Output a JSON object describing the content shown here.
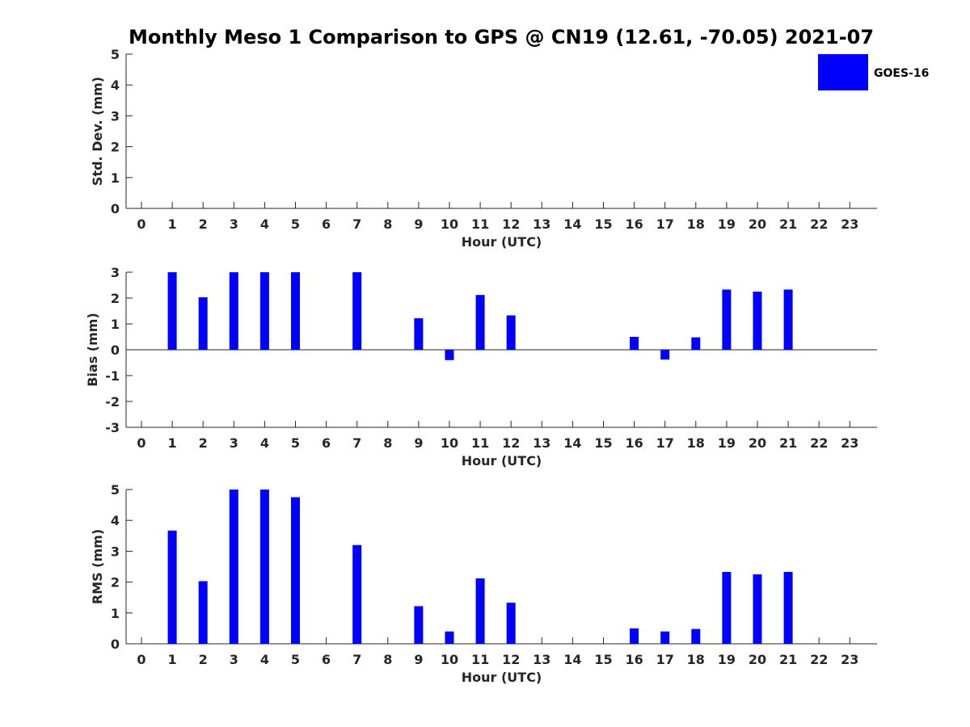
{
  "chart_data": {
    "type": "bar",
    "title": "Monthly Meso 1 Comparison to GPS @ CN19 (12.61, -70.05) 2021-07",
    "legend": {
      "label": "GOES-16",
      "color": "#0000ff",
      "position": "top-right"
    },
    "categories": [
      "0",
      "1",
      "2",
      "3",
      "4",
      "5",
      "6",
      "7",
      "8",
      "9",
      "10",
      "11",
      "12",
      "13",
      "14",
      "15",
      "16",
      "17",
      "18",
      "19",
      "20",
      "21",
      "22",
      "23"
    ],
    "panels": [
      {
        "id": "std",
        "ylabel": "Std. Dev. (mm)",
        "xlabel": "Hour (UTC)",
        "ylim": [
          0,
          5
        ],
        "yticks": [
          "0",
          "1",
          "2",
          "3",
          "4",
          "5"
        ],
        "series": [
          {
            "name": "GOES-16",
            "values": [
              null,
              null,
              null,
              null,
              null,
              null,
              null,
              null,
              null,
              null,
              null,
              null,
              null,
              null,
              null,
              null,
              null,
              null,
              null,
              null,
              null,
              null,
              null,
              null
            ]
          }
        ]
      },
      {
        "id": "bias",
        "ylabel": "Bias (mm)",
        "xlabel": "Hour (UTC)",
        "ylim": [
          -3,
          3
        ],
        "yticks": [
          "-3",
          "-2",
          "-1",
          "0",
          "1",
          "2",
          "3"
        ],
        "zero_line": true,
        "series": [
          {
            "name": "GOES-16",
            "values": [
              null,
              3.0,
              2.03,
              3.0,
              3.0,
              3.0,
              null,
              3.0,
              null,
              1.22,
              -0.4,
              2.12,
              1.33,
              null,
              null,
              null,
              0.5,
              -0.38,
              0.48,
              2.33,
              2.25,
              2.33,
              null,
              null
            ]
          }
        ]
      },
      {
        "id": "rms",
        "ylabel": "RMS (mm)",
        "xlabel": "Hour (UTC)",
        "ylim": [
          0,
          5
        ],
        "yticks": [
          "0",
          "1",
          "2",
          "3",
          "4",
          "5"
        ],
        "series": [
          {
            "name": "GOES-16",
            "values": [
              null,
              3.67,
              2.03,
              5.0,
              5.0,
              4.75,
              null,
              3.2,
              null,
              1.22,
              0.4,
              2.12,
              1.33,
              null,
              null,
              null,
              0.5,
              0.4,
              0.48,
              2.33,
              2.25,
              2.33,
              null,
              null
            ]
          }
        ]
      }
    ]
  }
}
